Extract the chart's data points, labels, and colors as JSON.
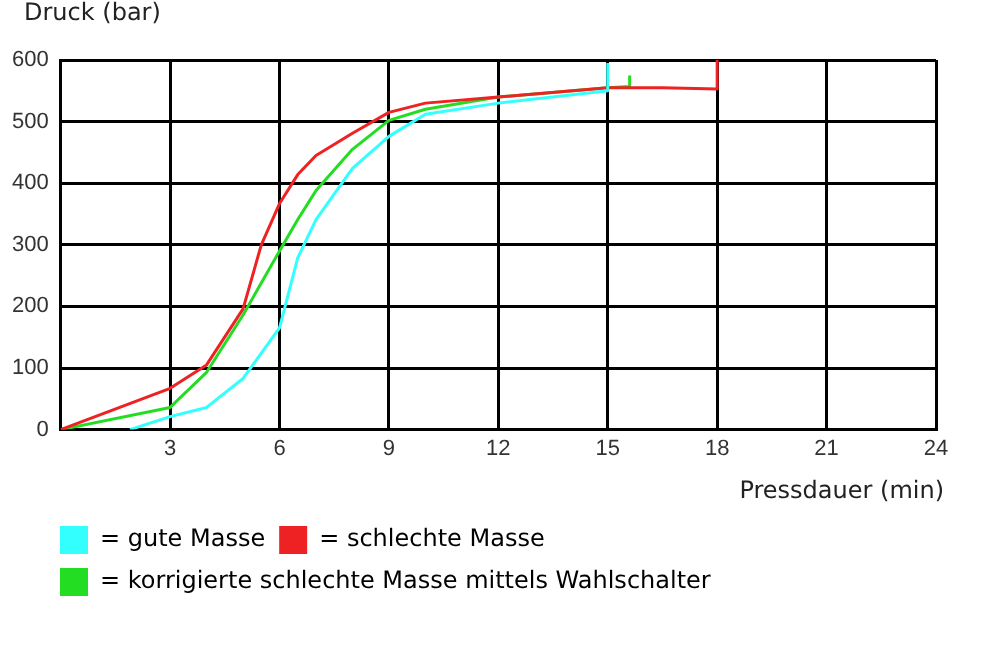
{
  "chart_data": {
    "type": "line",
    "ylabel": "Druck (bar)",
    "xlabel": "Pressdauer (min)",
    "xlim": [
      0,
      24
    ],
    "xticks": [
      {
        "value": 0,
        "label": null
      },
      3,
      6,
      9,
      12,
      15,
      18,
      21,
      24
    ],
    "ylim": [
      0,
      600
    ],
    "yticks": [
      0,
      100,
      200,
      300,
      400,
      500,
      600
    ],
    "grid": true,
    "legend": "bottom",
    "marker": "none",
    "line_style": "solid",
    "series": [
      {
        "name": "= gute Masse",
        "color": "#33ffff",
        "x": [
          1.9,
          3,
          4,
          5,
          5.5,
          6,
          6.5,
          7,
          8,
          9,
          10,
          12,
          15,
          15,
          15
        ],
        "values": [
          0,
          21,
          36,
          83,
          124,
          165,
          279,
          341,
          424,
          476,
          512,
          530,
          550,
          550,
          595
        ]
      },
      {
        "name": "= schlechte Masse",
        "color": "#ee2222",
        "x": [
          0,
          3,
          4,
          5,
          5.5,
          6,
          6.5,
          7,
          8,
          9,
          10,
          12,
          15,
          16.5,
          18,
          18
        ],
        "values": [
          0,
          67,
          105,
          196,
          300,
          367,
          414,
          445,
          481,
          515,
          530,
          540,
          555,
          555,
          553,
          600
        ]
      },
      {
        "name": "= korrigierte schlechte Masse mittels Wahlschalter",
        "color": "#22dd22",
        "x": [
          0,
          3,
          4,
          5,
          6,
          6.5,
          7,
          8,
          9,
          10,
          12,
          15,
          15.6,
          15.6
        ],
        "values": [
          0,
          36,
          93,
          186,
          290,
          341,
          388,
          455,
          502,
          520,
          540,
          555,
          557,
          575
        ]
      }
    ]
  }
}
